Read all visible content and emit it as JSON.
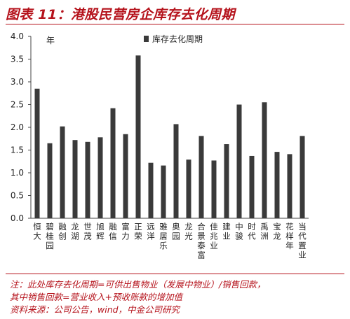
{
  "title": "图表 11：港股民营房企库存去化周期",
  "chart_data": {
    "type": "bar",
    "unit_label": "年",
    "legend": [
      "库存去化周期"
    ],
    "categories": [
      "恒大",
      "碧桂园",
      "融创",
      "龙湖",
      "世茂",
      "旭辉",
      "融信",
      "富力",
      "正荣",
      "远洋",
      "雅居乐",
      "奥园",
      "龙光",
      "合景泰富",
      "佳兆业",
      "建业",
      "中骏",
      "时代",
      "禹洲",
      "宝龙",
      "花样年",
      "当代置业"
    ],
    "series": [
      {
        "name": "库存去化周期",
        "values": [
          2.85,
          1.65,
          2.02,
          1.72,
          1.68,
          1.78,
          2.42,
          1.85,
          3.58,
          1.22,
          1.16,
          2.07,
          1.29,
          1.81,
          1.27,
          1.63,
          2.5,
          1.37,
          2.55,
          1.46,
          1.41,
          1.81
        ]
      }
    ],
    "yticks": [
      "0.0",
      "0.5",
      "1.0",
      "1.5",
      "2.0",
      "2.5",
      "3.0",
      "3.5",
      "4.0"
    ],
    "ylim": [
      0,
      4
    ],
    "bar_color": "#3a3a3a"
  },
  "notes": [
    "注：此处库存去化周期=可供出售物业（发展中物业）/销售回款，",
    "其中销售回款=营业收入+预收账款的增加值",
    "资料来源：公司公告，wind，中金公司研究"
  ]
}
